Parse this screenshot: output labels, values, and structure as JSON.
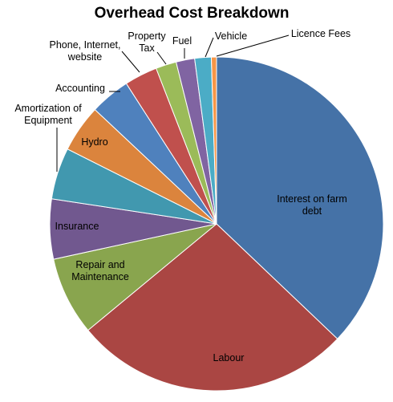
{
  "chart_data": {
    "type": "pie",
    "title": "Overhead Cost Breakdown",
    "start_angle_deg": 0,
    "direction": "clockwise",
    "slices": [
      {
        "label": "Interest on farm debt",
        "label_lines": [
          "Interest on farm",
          "debt"
        ],
        "value": 37.1,
        "color": "#4572A7"
      },
      {
        "label": "Labour",
        "label_lines": [
          "Labour"
        ],
        "value": 26.9,
        "color": "#AA4643"
      },
      {
        "label": "Repair and Maintenance",
        "label_lines": [
          "Repair and",
          "Maintenance"
        ],
        "value": 7.6,
        "color": "#89A54E"
      },
      {
        "label": "Insurance",
        "label_lines": [
          "Insurance"
        ],
        "value": 5.8,
        "color": "#71588F"
      },
      {
        "label": "Amortization of Equipment",
        "label_lines": [
          "Amortization of",
          "Equipment"
        ],
        "value": 5.0,
        "color": "#4198AF"
      },
      {
        "label": "Hydro",
        "label_lines": [
          "Hydro"
        ],
        "value": 4.6,
        "color": "#DB843D"
      },
      {
        "label": "Accounting",
        "label_lines": [
          "Accounting"
        ],
        "value": 3.9,
        "color": "#4F81BD"
      },
      {
        "label": "Phone, Internet, website",
        "label_lines": [
          "Phone, Internet,",
          "website"
        ],
        "value": 3.2,
        "color": "#C0504D"
      },
      {
        "label": "Property Tax",
        "label_lines": [
          "Property",
          "Tax"
        ],
        "value": 2.0,
        "color": "#9BBB59"
      },
      {
        "label": "Fuel",
        "label_lines": [
          "Fuel"
        ],
        "value": 1.8,
        "color": "#8064A2"
      },
      {
        "label": "Vehicle",
        "label_lines": [
          "Vehicle"
        ],
        "value": 1.6,
        "color": "#4BACC6"
      },
      {
        "label": "Licence Fees",
        "label_lines": [
          "Licence Fees"
        ],
        "value": 0.5,
        "color": "#F79646"
      }
    ]
  }
}
